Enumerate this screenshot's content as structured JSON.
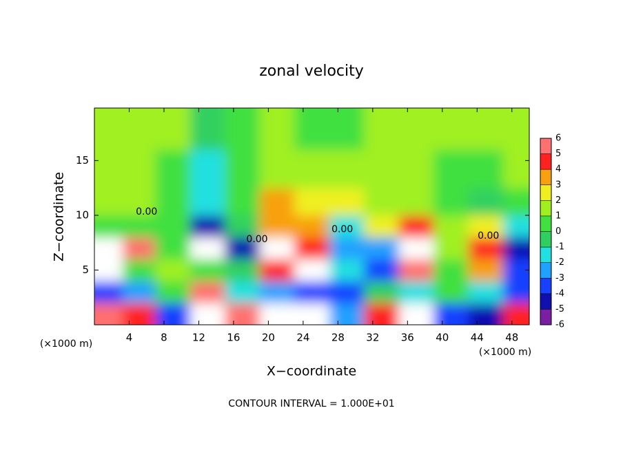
{
  "chart_data": {
    "type": "heatmap",
    "title": "zonal velocity",
    "x_label": "X−coordinate",
    "y_label": "Z−coordinate",
    "x_unit": "(×1000 m)",
    "footer": "CONTOUR INTERVAL = 1.000E+01",
    "xlim": [
      0,
      50
    ],
    "ylim": [
      0,
      19.8
    ],
    "xticks": [
      4,
      8,
      12,
      16,
      20,
      24,
      28,
      32,
      36,
      40,
      44,
      48
    ],
    "yticks": [
      5,
      10,
      15
    ],
    "x": [
      1.5,
      5,
      9,
      13,
      17,
      21,
      25,
      29,
      33,
      37,
      41,
      45,
      49
    ],
    "y": [
      1,
      3,
      5,
      7,
      9,
      11,
      14,
      18
    ],
    "z": [
      [
        5,
        4,
        -4,
        7,
        5,
        7,
        7,
        -3,
        4,
        -7,
        -4,
        -5,
        4
      ],
      [
        -4,
        -3,
        0,
        5,
        -2,
        -3,
        -4,
        -4,
        -1,
        -2,
        0,
        -2,
        -4
      ],
      [
        -7,
        0,
        1,
        0,
        -1,
        4,
        7,
        -2,
        -4,
        5,
        0,
        3,
        -4
      ],
      [
        -7,
        5,
        0,
        -7,
        -5,
        7,
        4,
        -3,
        -3,
        7,
        1,
        4,
        -5
      ],
      [
        0,
        0,
        0,
        -5,
        -1,
        3,
        3,
        -2,
        2,
        4,
        1,
        2,
        -2
      ],
      [
        1,
        1,
        0,
        -2,
        0,
        3,
        2,
        2,
        1,
        1,
        0,
        -1,
        0
      ],
      [
        1,
        1,
        0,
        -2,
        0,
        1,
        1,
        1,
        1,
        1,
        0,
        0,
        1
      ],
      [
        1,
        1,
        1,
        -1,
        0,
        1,
        0,
        0,
        1,
        1,
        1,
        1,
        1
      ]
    ],
    "colorbar_ticks": [
      6,
      5,
      4,
      3,
      2,
      1,
      0,
      -1,
      -2,
      -3,
      -4,
      -5,
      -6
    ],
    "colorbar_colors": [
      "#7b1fa2",
      "#1010b0",
      "#1840ff",
      "#20a0ff",
      "#20e0e0",
      "#30d060",
      "#40e040",
      "#a0f020",
      "#f0f020",
      "#f8a010",
      "#ff2020",
      "#ff7070"
    ],
    "above_color": "#ffffff",
    "below_color": "#ffffff",
    "annotations": [
      {
        "text": "0.00",
        "x": 6,
        "y": 10.3
      },
      {
        "text": "0.00",
        "x": 18.7,
        "y": 7.8
      },
      {
        "text": "0.00",
        "x": 28.5,
        "y": 8.7
      },
      {
        "text": "0.00",
        "x": 45.3,
        "y": 8.1
      }
    ]
  }
}
